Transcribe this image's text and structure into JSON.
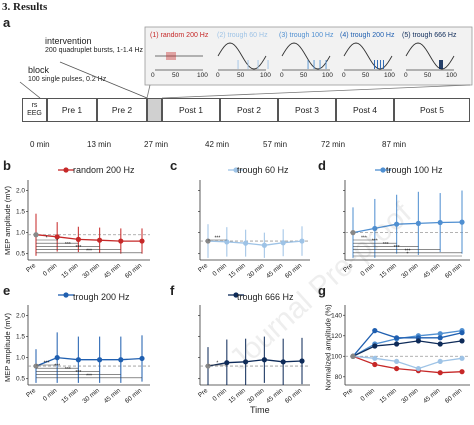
{
  "section_heading": "3. Results",
  "panel_a": {
    "letter": "a",
    "block": {
      "title": "block",
      "desc": "100 single pulses, 0.2 Hz"
    },
    "intervention": {
      "title": "intervention",
      "desc": "200 quadruplet bursts, 1-1.4 Hz"
    },
    "conditions": [
      {
        "label": "(1) random 200 Hz",
        "color": "#c62828"
      },
      {
        "label": "(2) trough 60 Hz",
        "color": "#9ec3e6"
      },
      {
        "label": "(3) trough 100 Hz",
        "color": "#4f8fd1"
      },
      {
        "label": "(4) trough 200 Hz",
        "color": "#1f5fb0"
      },
      {
        "label": "(5) trough 666 Hz",
        "color": "#0e2b59"
      }
    ],
    "inset_ticks": [
      "0",
      "50",
      "100"
    ],
    "timeline_blocks": [
      "rs EEG",
      "Pre 1",
      "Pre 2",
      "Post 1",
      "Post 2",
      "Post 3",
      "Post 4",
      "Post 5"
    ],
    "time_marks": [
      "0 min",
      "13 min",
      "27 min",
      "42 min",
      "57 min",
      "72 min",
      "87 min"
    ]
  },
  "shared": {
    "x_categories": [
      "Pre",
      "0 min",
      "15 min",
      "30 min",
      "45 min",
      "60 min"
    ],
    "x_label": "Time",
    "y_label_mep": "MEP amplitude (mV)",
    "y_label_norm": "Normalized amplitude (%)",
    "y_ticks_mep": [
      "0.5",
      "1.0",
      "1.5",
      "2.0"
    ],
    "y_ticks_norm": [
      "80",
      "100",
      "120",
      "140"
    ],
    "watermark": "Journal Pre-proof"
  },
  "chart_data": [
    {
      "panel": "b",
      "type": "line",
      "series": [
        {
          "name": "random 200 Hz",
          "color": "#c62828",
          "values": [
            0.95,
            0.9,
            0.84,
            0.82,
            0.8,
            0.8
          ]
        }
      ],
      "categories": [
        "Pre",
        "0 min",
        "15 min",
        "30 min",
        "45 min",
        "60 min"
      ],
      "ylabel": "MEP amplitude (mV)",
      "ylim": [
        0.35,
        2.25
      ],
      "ref_line": 0.95,
      "sig_labels": [
        "*",
        "*",
        "***",
        "***",
        "***"
      ],
      "err": [
        0.5,
        0.35,
        0.3,
        0.3,
        0.3,
        0.3
      ]
    },
    {
      "panel": "c",
      "type": "line",
      "series": [
        {
          "name": "trough 60 Hz",
          "color": "#9ec3e6",
          "values": [
            0.8,
            0.78,
            0.75,
            0.7,
            0.76,
            0.8
          ]
        }
      ],
      "categories": [
        "Pre",
        "0 min",
        "15 min",
        "30 min",
        "45 min",
        "60 min"
      ],
      "ylim": [
        0.35,
        2.25
      ],
      "ref_line": 0.8,
      "sig_labels": [
        "***"
      ],
      "err": [
        0.4,
        0.35,
        0.32,
        0.3,
        0.32,
        0.35
      ]
    },
    {
      "panel": "d",
      "type": "line",
      "series": [
        {
          "name": "trough 100 Hz",
          "color": "#4f8fd1",
          "values": [
            1.0,
            1.1,
            1.2,
            1.22,
            1.24,
            1.25
          ]
        }
      ],
      "categories": [
        "Pre",
        "0 min",
        "15 min",
        "30 min",
        "45 min",
        "60 min"
      ],
      "ylim": [
        0.35,
        2.25
      ],
      "ref_line": 1.0,
      "sig_labels": [
        "***",
        "***",
        "***",
        "***",
        "***",
        "*",
        "*"
      ],
      "err": [
        0.6,
        0.7,
        0.7,
        0.75,
        0.7,
        0.75
      ]
    },
    {
      "panel": "e",
      "type": "line",
      "series": [
        {
          "name": "trough 200 Hz",
          "color": "#1f5fb0",
          "values": [
            0.8,
            1.0,
            0.95,
            0.95,
            0.95,
            0.98
          ]
        }
      ],
      "categories": [
        "Pre",
        "0 min",
        "15 min",
        "30 min",
        "45 min",
        "60 min"
      ],
      "ylabel": "MEP amplitude (mV)",
      "ylim": [
        0.35,
        2.25
      ],
      "ref_line": 0.8,
      "sig_labels": [
        "***",
        "***",
        "***",
        "***",
        "***"
      ],
      "err": [
        0.4,
        0.6,
        0.55,
        0.55,
        0.55,
        0.55
      ]
    },
    {
      "panel": "f",
      "type": "line",
      "series": [
        {
          "name": "trough 666 Hz",
          "color": "#0e2b59",
          "values": [
            0.8,
            0.88,
            0.9,
            0.95,
            0.9,
            0.92
          ]
        }
      ],
      "categories": [
        "Pre",
        "0 min",
        "15 min",
        "30 min",
        "45 min",
        "60 min"
      ],
      "xlabel": "Time",
      "ylim": [
        0.35,
        2.25
      ],
      "ref_line": 0.8,
      "sig_labels": [
        "*"
      ],
      "err": [
        0.45,
        0.55,
        0.55,
        0.55,
        0.55,
        0.55
      ]
    },
    {
      "panel": "g",
      "type": "line",
      "categories": [
        "Pre",
        "0 min",
        "15 min",
        "30 min",
        "45 min",
        "60 min"
      ],
      "ylabel": "Normalized amplitude (%)",
      "ylim": [
        72,
        150
      ],
      "ref_line": 100,
      "series": [
        {
          "color": "#c62828",
          "values": [
            100,
            92,
            88,
            86,
            84,
            85
          ]
        },
        {
          "color": "#9ec3e6",
          "values": [
            100,
            98,
            95,
            88,
            95,
            98
          ]
        },
        {
          "color": "#4f8fd1",
          "values": [
            100,
            112,
            117,
            120,
            122,
            125
          ]
        },
        {
          "color": "#1f5fb0",
          "values": [
            100,
            125,
            118,
            118,
            118,
            123
          ]
        },
        {
          "color": "#0e2b59",
          "values": [
            100,
            110,
            112,
            115,
            112,
            115
          ]
        }
      ]
    }
  ]
}
